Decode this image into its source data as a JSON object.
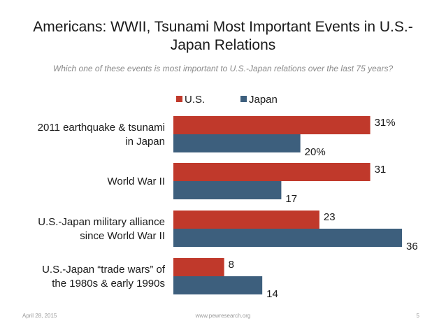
{
  "slide": {
    "title_line1": "Americans: WWII, Tsunami Most Important Events in U.S.-",
    "title_line2": "Japan Relations",
    "subtitle": "Which one of these events is most important to U.S.-Japan relations over the last 75 years?"
  },
  "footer": {
    "date": "April 28, 2015",
    "url": "www.pewresearch.org",
    "page": "5"
  },
  "chart_data": {
    "type": "bar",
    "orientation": "horizontal",
    "categories": [
      [
        "2011 earthquake & tsunami",
        "in Japan"
      ],
      [
        "World War II"
      ],
      [
        "U.S.-Japan military alliance",
        "since World War II"
      ],
      [
        "U.S.-Japan “trade wars” of",
        "the 1980s & early 1990s"
      ]
    ],
    "series": [
      {
        "name": "U.S.",
        "color": "#c0392b",
        "values": [
          31,
          31,
          23,
          8
        ],
        "labels": [
          "31%",
          "31",
          "23",
          "8"
        ]
      },
      {
        "name": "Japan",
        "color": "#3d5f7d",
        "values": [
          20,
          17,
          36,
          14
        ],
        "labels": [
          "20%",
          "17",
          "36",
          "14"
        ]
      }
    ],
    "unit": "%",
    "xlim": [
      0,
      36
    ],
    "legend_position": "top",
    "grid": false
  }
}
